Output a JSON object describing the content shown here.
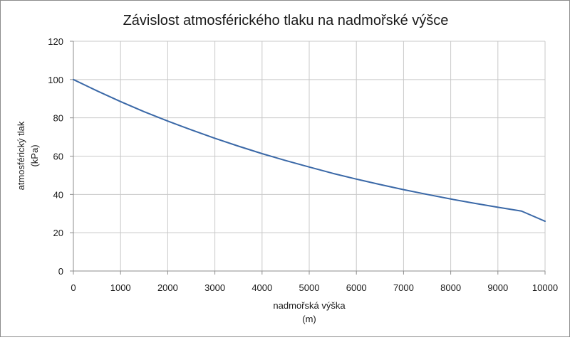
{
  "chart_data": {
    "type": "line",
    "title": "Závislost atmosférického tlaku na nadmořské výšce",
    "xlabel": [
      "nadmořská výška",
      "(m)"
    ],
    "ylabel": [
      "atmosférický tlak",
      "(kPa)"
    ],
    "xlim": [
      0,
      10000
    ],
    "ylim": [
      0,
      120
    ],
    "xticks": [
      "0",
      "1000",
      "2000",
      "3000",
      "4000",
      "5000",
      "6000",
      "7000",
      "8000",
      "9000",
      "10000"
    ],
    "yticks": [
      "0",
      "20",
      "40",
      "60",
      "80",
      "100",
      "120"
    ],
    "grid": true,
    "legend": false,
    "line_color": "#3a68a7",
    "grid_color": "#c8c8c8",
    "series": [
      {
        "x": [
          0,
          500,
          1000,
          1500,
          2000,
          2500,
          3000,
          3500,
          4000,
          4500,
          5000,
          5500,
          6000,
          6500,
          7000,
          7500,
          8000,
          8500,
          9000,
          9500,
          10000
        ],
        "values": [
          100,
          94.1,
          88.5,
          83.2,
          78.3,
          73.7,
          69.3,
          65.2,
          61.3,
          57.7,
          54.3,
          51.0,
          48.0,
          45.2,
          42.5,
          40.0,
          37.6,
          35.4,
          33.3,
          31.3,
          26.0
        ]
      }
    ]
  }
}
